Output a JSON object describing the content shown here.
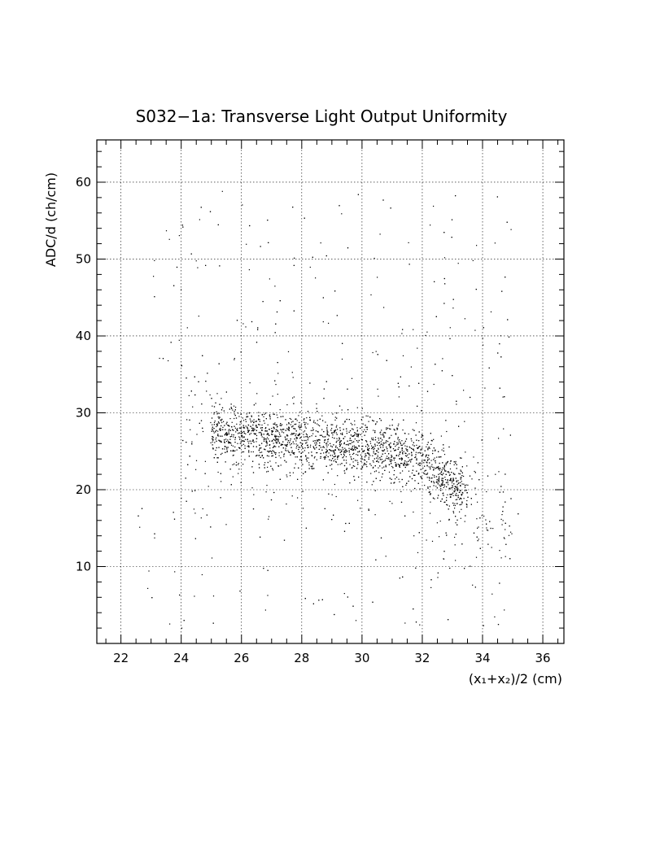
{
  "chart_data": {
    "type": "scatter",
    "title": "S032−1a: Transverse Light Output Uniformity",
    "xlabel": "(x₁+x₂)/2 (cm)",
    "ylabel": "ADC/d (ch/cm)",
    "xlim": [
      21.2,
      36.7
    ],
    "ylim": [
      0,
      65.5
    ],
    "x_ticks": [
      22,
      24,
      26,
      28,
      30,
      32,
      34,
      36
    ],
    "y_ticks": [
      10,
      20,
      30,
      40,
      50,
      60
    ],
    "grid": true,
    "legend": "none",
    "point_color": "#000000",
    "approx_point_count": 3500,
    "distribution": {
      "x_range": [
        22.5,
        35.3
      ],
      "y_range": [
        2,
        59.5
      ],
      "dense_core": {
        "x_range": [
          25,
          33.5
        ],
        "y_range": [
          21,
          30
        ]
      },
      "core_trend": [
        {
          "x": 25,
          "y": 27.5
        },
        {
          "x": 26,
          "y": 27.2
        },
        {
          "x": 27,
          "y": 26.8
        },
        {
          "x": 28,
          "y": 26.5
        },
        {
          "x": 29,
          "y": 26.0
        },
        {
          "x": 30,
          "y": 25.6
        },
        {
          "x": 31,
          "y": 25.0
        },
        {
          "x": 32,
          "y": 24.0
        },
        {
          "x": 33,
          "y": 21.0
        },
        {
          "x": 34,
          "y": 17.5
        },
        {
          "x": 35,
          "y": 16.0
        }
      ],
      "note_sparse_outliers_above": true
    }
  }
}
